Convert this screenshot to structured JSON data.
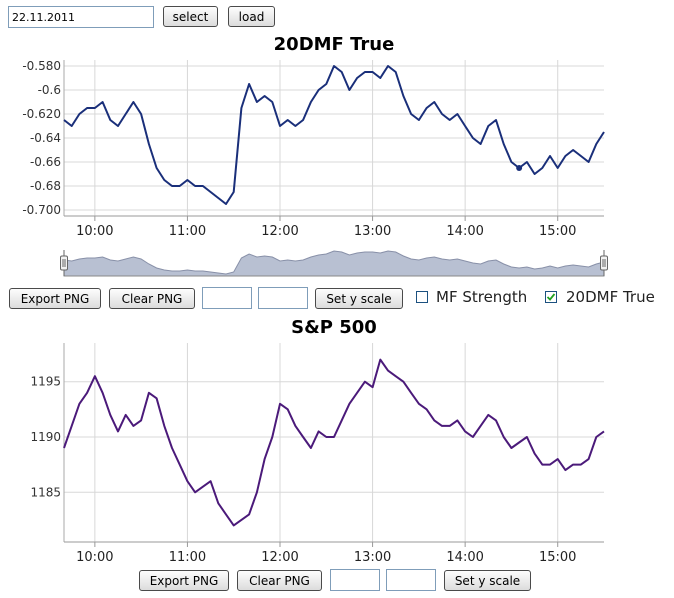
{
  "toolbar": {
    "date_value": "22.11.2011",
    "select_label": "select",
    "load_label": "load"
  },
  "chart1_controls": {
    "export_label": "Export PNG",
    "clear_label": "Clear PNG",
    "field1": "",
    "field2": "",
    "sety_label": "Set y scale",
    "cb1_label": "MF Strength",
    "cb1_checked": false,
    "cb2_label": "20DMF True",
    "cb2_checked": true
  },
  "chart2_controls": {
    "export_label": "Export PNG",
    "clear_label": "Clear PNG",
    "field1": "",
    "field2": "",
    "sety_label": "Set y scale"
  },
  "colors": {
    "series1": "#1a2f7a",
    "series2": "#4b1a7a",
    "navigator_fill": "#b8c0d2",
    "navigator_line": "#8890a8",
    "grid": "#d8d8d8"
  },
  "chart_data": [
    {
      "type": "line",
      "title": "20DMF True",
      "ylim": [
        -0.705,
        -0.575
      ],
      "yticks": [
        -0.58,
        -0.6,
        -0.62,
        -0.64,
        -0.66,
        -0.68,
        -0.7
      ],
      "ytick_labels": [
        "-0.580",
        "-0.6",
        "-0.620",
        "-0.64",
        "-0.66",
        "-0.68",
        "-0.700"
      ],
      "xlim": [
        "09:40",
        "15:30"
      ],
      "xticks": [
        "10:00",
        "11:00",
        "12:00",
        "13:00",
        "14:00",
        "15:00"
      ],
      "grid": true,
      "series": [
        {
          "x": [
            "09:40",
            "09:45",
            "09:50",
            "09:55",
            "10:00",
            "10:05",
            "10:10",
            "10:15",
            "10:20",
            "10:25",
            "10:30",
            "10:35",
            "10:40",
            "10:45",
            "10:50",
            "10:55",
            "11:00",
            "11:05",
            "11:10",
            "11:15",
            "11:20",
            "11:25",
            "11:30",
            "11:35",
            "11:40",
            "11:45",
            "11:50",
            "11:55",
            "12:00",
            "12:05",
            "12:10",
            "12:15",
            "12:20",
            "12:25",
            "12:30",
            "12:35",
            "12:40",
            "12:45",
            "12:50",
            "12:55",
            "13:00",
            "13:05",
            "13:10",
            "13:15",
            "13:20",
            "13:25",
            "13:30",
            "13:35",
            "13:40",
            "13:45",
            "13:50",
            "13:55",
            "14:00",
            "14:05",
            "14:10",
            "14:15",
            "14:20",
            "14:25",
            "14:30",
            "14:35",
            "14:40",
            "14:45",
            "14:50",
            "14:55",
            "15:00",
            "15:05",
            "15:10",
            "15:15",
            "15:20",
            "15:25",
            "15:30"
          ],
          "y": [
            -0.625,
            -0.63,
            -0.62,
            -0.615,
            -0.615,
            -0.61,
            -0.625,
            -0.63,
            -0.62,
            -0.61,
            -0.62,
            -0.645,
            -0.665,
            -0.675,
            -0.68,
            -0.68,
            -0.675,
            -0.68,
            -0.68,
            -0.685,
            -0.69,
            -0.695,
            -0.685,
            -0.615,
            -0.595,
            -0.61,
            -0.605,
            -0.61,
            -0.63,
            -0.625,
            -0.63,
            -0.625,
            -0.61,
            -0.6,
            -0.595,
            -0.58,
            -0.585,
            -0.6,
            -0.59,
            -0.585,
            -0.585,
            -0.59,
            -0.58,
            -0.585,
            -0.605,
            -0.62,
            -0.625,
            -0.615,
            -0.61,
            -0.62,
            -0.625,
            -0.62,
            -0.63,
            -0.64,
            -0.645,
            -0.63,
            -0.625,
            -0.645,
            -0.66,
            -0.665,
            -0.66,
            -0.67,
            -0.665,
            -0.655,
            -0.665,
            -0.655,
            -0.65,
            -0.655,
            -0.66,
            -0.645,
            -0.635
          ]
        }
      ]
    },
    {
      "type": "line",
      "title": "S&P 500",
      "ylim": [
        1180.5,
        1198.5
      ],
      "yticks": [
        1185,
        1190,
        1195
      ],
      "ytick_labels": [
        "1185",
        "1190",
        "1195"
      ],
      "xlim": [
        "09:40",
        "15:30"
      ],
      "xticks": [
        "10:00",
        "11:00",
        "12:00",
        "13:00",
        "14:00",
        "15:00"
      ],
      "grid": true,
      "series": [
        {
          "x": [
            "09:40",
            "09:45",
            "09:50",
            "09:55",
            "10:00",
            "10:05",
            "10:10",
            "10:15",
            "10:20",
            "10:25",
            "10:30",
            "10:35",
            "10:40",
            "10:45",
            "10:50",
            "10:55",
            "11:00",
            "11:05",
            "11:10",
            "11:15",
            "11:20",
            "11:25",
            "11:30",
            "11:35",
            "11:40",
            "11:45",
            "11:50",
            "11:55",
            "12:00",
            "12:05",
            "12:10",
            "12:15",
            "12:20",
            "12:25",
            "12:30",
            "12:35",
            "12:40",
            "12:45",
            "12:50",
            "12:55",
            "13:00",
            "13:05",
            "13:10",
            "13:15",
            "13:20",
            "13:25",
            "13:30",
            "13:35",
            "13:40",
            "13:45",
            "13:50",
            "13:55",
            "14:00",
            "14:05",
            "14:10",
            "14:15",
            "14:20",
            "14:25",
            "14:30",
            "14:35",
            "14:40",
            "14:45",
            "14:50",
            "14:55",
            "15:00",
            "15:05",
            "15:10",
            "15:15",
            "15:20",
            "15:25",
            "15:30"
          ],
          "y": [
            1189,
            1191,
            1193,
            1194,
            1195.5,
            1194,
            1192,
            1190.5,
            1192,
            1191,
            1191.5,
            1194,
            1193.5,
            1191,
            1189,
            1187.5,
            1186,
            1185,
            1185.5,
            1186,
            1184,
            1183,
            1182,
            1182.5,
            1183,
            1185,
            1188,
            1190,
            1193,
            1192.5,
            1191,
            1190,
            1189,
            1190.5,
            1190,
            1190,
            1191.5,
            1193,
            1194,
            1195,
            1194.5,
            1197,
            1196,
            1195.5,
            1195,
            1194,
            1193,
            1192.5,
            1191.5,
            1191,
            1191,
            1191.5,
            1190.5,
            1190,
            1191,
            1192,
            1191.5,
            1190,
            1189,
            1189.5,
            1190,
            1188.5,
            1187.5,
            1187.5,
            1188,
            1187,
            1187.5,
            1187.5,
            1188,
            1190,
            1190.5
          ]
        }
      ]
    }
  ]
}
